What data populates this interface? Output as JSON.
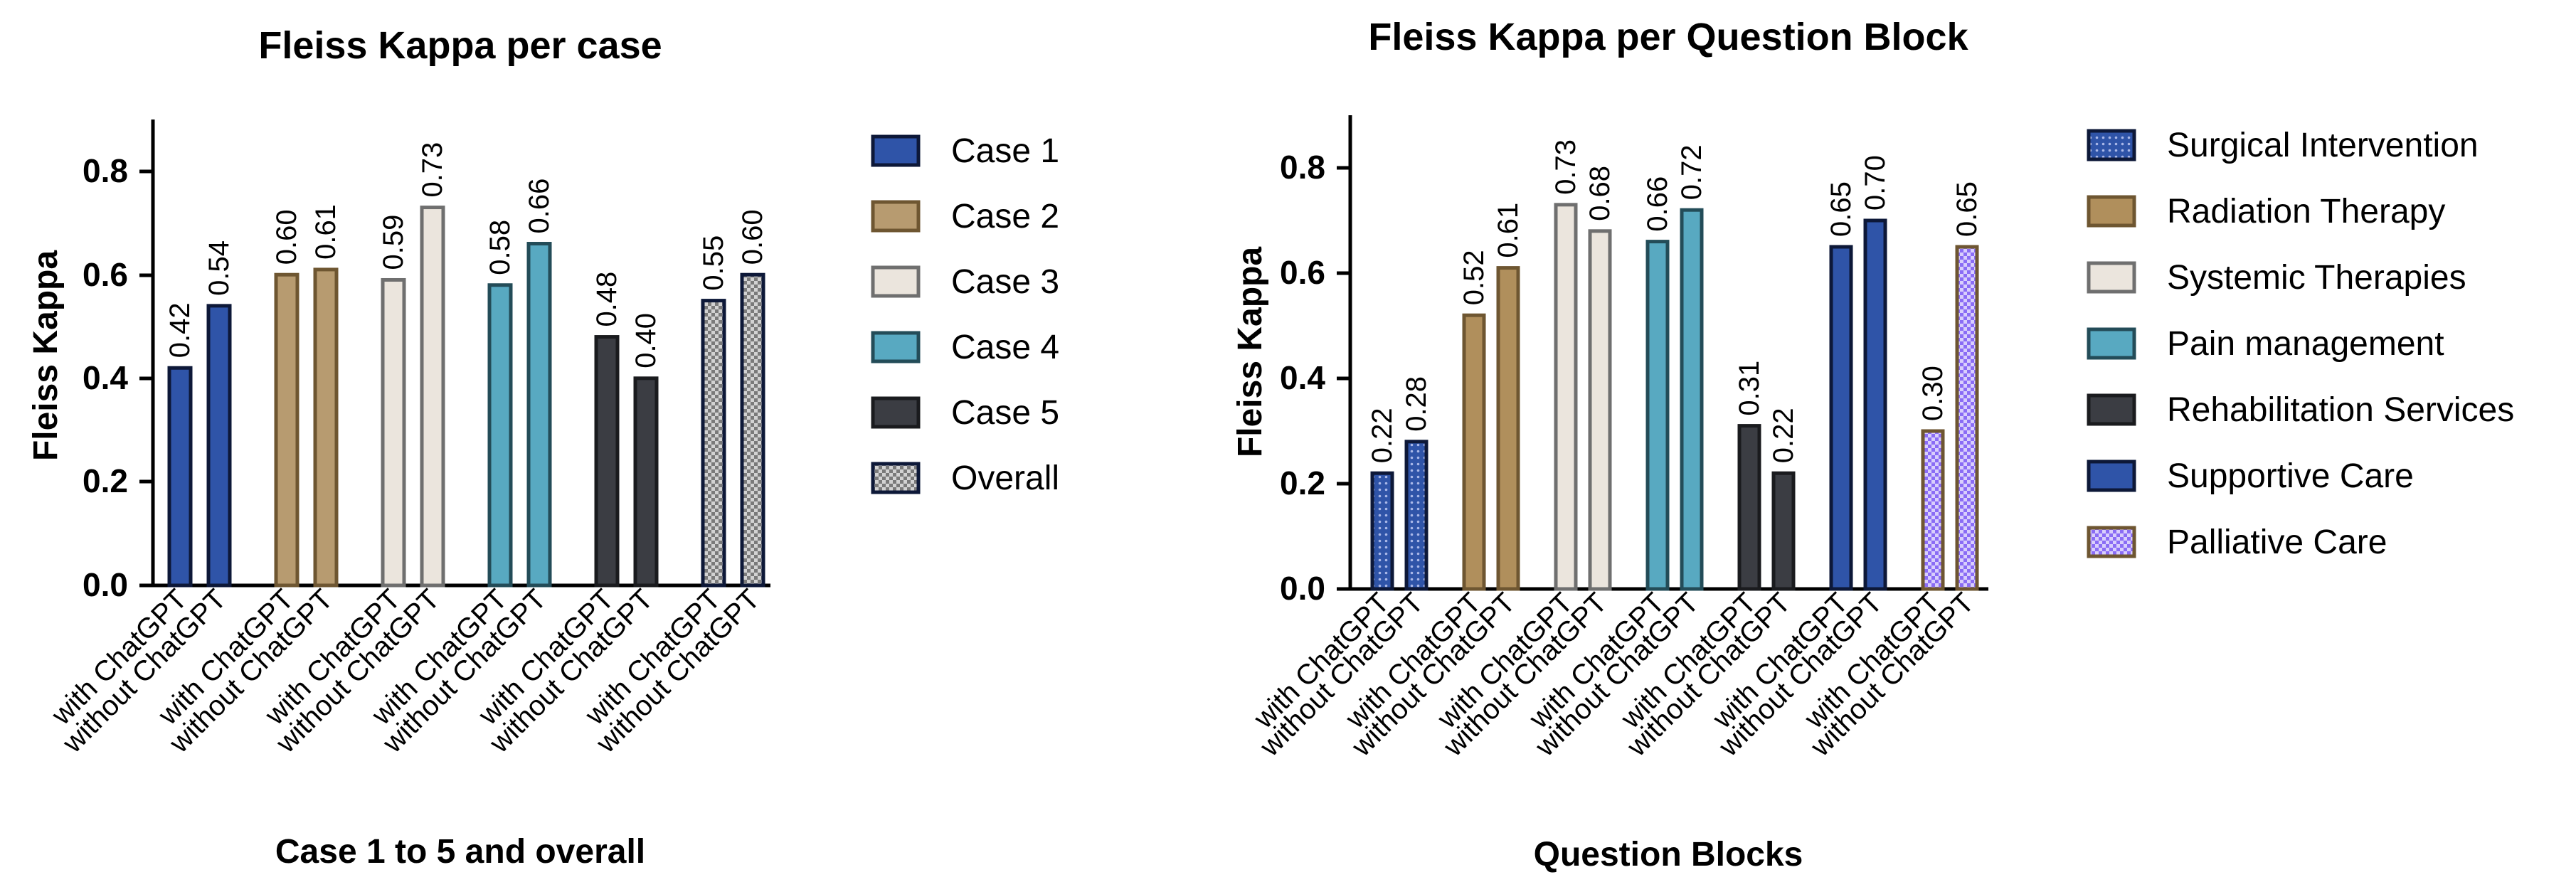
{
  "chart_data": [
    {
      "type": "bar",
      "title": "Fleiss Kappa per case",
      "xlabel": "Case 1 to 5 and overall",
      "ylabel": "Fleiss Kappa",
      "ylim": [
        0,
        0.9
      ],
      "yticks": [
        "0.0",
        "0.2",
        "0.4",
        "0.6",
        "0.8"
      ],
      "categories": [
        "with ChatGPT",
        "without ChatGPT"
      ],
      "series": [
        {
          "name": "Case 1",
          "values": [
            0.42,
            0.54
          ],
          "labels": [
            "0.42",
            "0.54"
          ],
          "fill": "#2f54a8",
          "stroke": "#0d1838",
          "pattern": "none"
        },
        {
          "name": "Case 2",
          "values": [
            0.6,
            0.61
          ],
          "labels": [
            "0.60",
            "0.61"
          ],
          "fill": "#b79b70",
          "stroke": "#6e5631",
          "pattern": "none"
        },
        {
          "name": "Case 3",
          "values": [
            0.59,
            0.73
          ],
          "labels": [
            "0.59",
            "0.73"
          ],
          "fill": "#ebe5dd",
          "stroke": "#6f6f6f",
          "pattern": "none"
        },
        {
          "name": "Case 4",
          "values": [
            0.58,
            0.66
          ],
          "labels": [
            "0.58",
            "0.66"
          ],
          "fill": "#58a9c1",
          "stroke": "#234c58",
          "pattern": "none"
        },
        {
          "name": "Case 5",
          "values": [
            0.48,
            0.4
          ],
          "labels": [
            "0.48",
            "0.40"
          ],
          "fill": "#3b3d43",
          "stroke": "#1a1b1e",
          "pattern": "none"
        },
        {
          "name": "Overall",
          "values": [
            0.55,
            0.6
          ],
          "labels": [
            "0.55",
            "0.60"
          ],
          "fill": "#b6b6b6",
          "stroke": "#0d1838",
          "pattern": "check"
        }
      ]
    },
    {
      "type": "bar",
      "title": "Fleiss Kappa per Question Block",
      "xlabel": "Question Blocks",
      "ylabel": "Fleiss Kappa",
      "ylim": [
        0,
        0.9
      ],
      "yticks": [
        "0.0",
        "0.2",
        "0.4",
        "0.6",
        "0.8"
      ],
      "categories": [
        "with ChatGPT",
        "without ChatGPT"
      ],
      "series": [
        {
          "name": "Surgical Intervention",
          "values": [
            0.22,
            0.28
          ],
          "labels": [
            "0.22",
            "0.28"
          ],
          "fill": "#2f54a8",
          "stroke": "#0d1838",
          "pattern": "dots"
        },
        {
          "name": "Radiation Therapy",
          "values": [
            0.52,
            0.61
          ],
          "labels": [
            "0.52",
            "0.61"
          ],
          "fill": "#b08f5c",
          "stroke": "#6e5631",
          "pattern": "none"
        },
        {
          "name": "Systemic Therapies",
          "values": [
            0.73,
            0.68
          ],
          "labels": [
            "0.73",
            "0.68"
          ],
          "fill": "#ebe5dd",
          "stroke": "#6f6f6f",
          "pattern": "none"
        },
        {
          "name": "Pain management",
          "values": [
            0.66,
            0.72
          ],
          "labels": [
            "0.66",
            "0.72"
          ],
          "fill": "#58a9c1",
          "stroke": "#234c58",
          "pattern": "none"
        },
        {
          "name": "Rehabilitation Services",
          "values": [
            0.31,
            0.22
          ],
          "labels": [
            "0.31",
            "0.22"
          ],
          "fill": "#3b3d43",
          "stroke": "#1a1b1e",
          "pattern": "none"
        },
        {
          "name": "Supportive Care",
          "values": [
            0.65,
            0.7
          ],
          "labels": [
            "0.65",
            "0.70"
          ],
          "fill": "#2f54a8",
          "stroke": "#0d1838",
          "pattern": "none"
        },
        {
          "name": "Palliative Care",
          "values": [
            0.3,
            0.65
          ],
          "labels": [
            "0.30",
            "0.65"
          ],
          "fill": "#7a5cf0",
          "stroke": "#6e5631",
          "pattern": "purplecheck"
        }
      ]
    }
  ]
}
